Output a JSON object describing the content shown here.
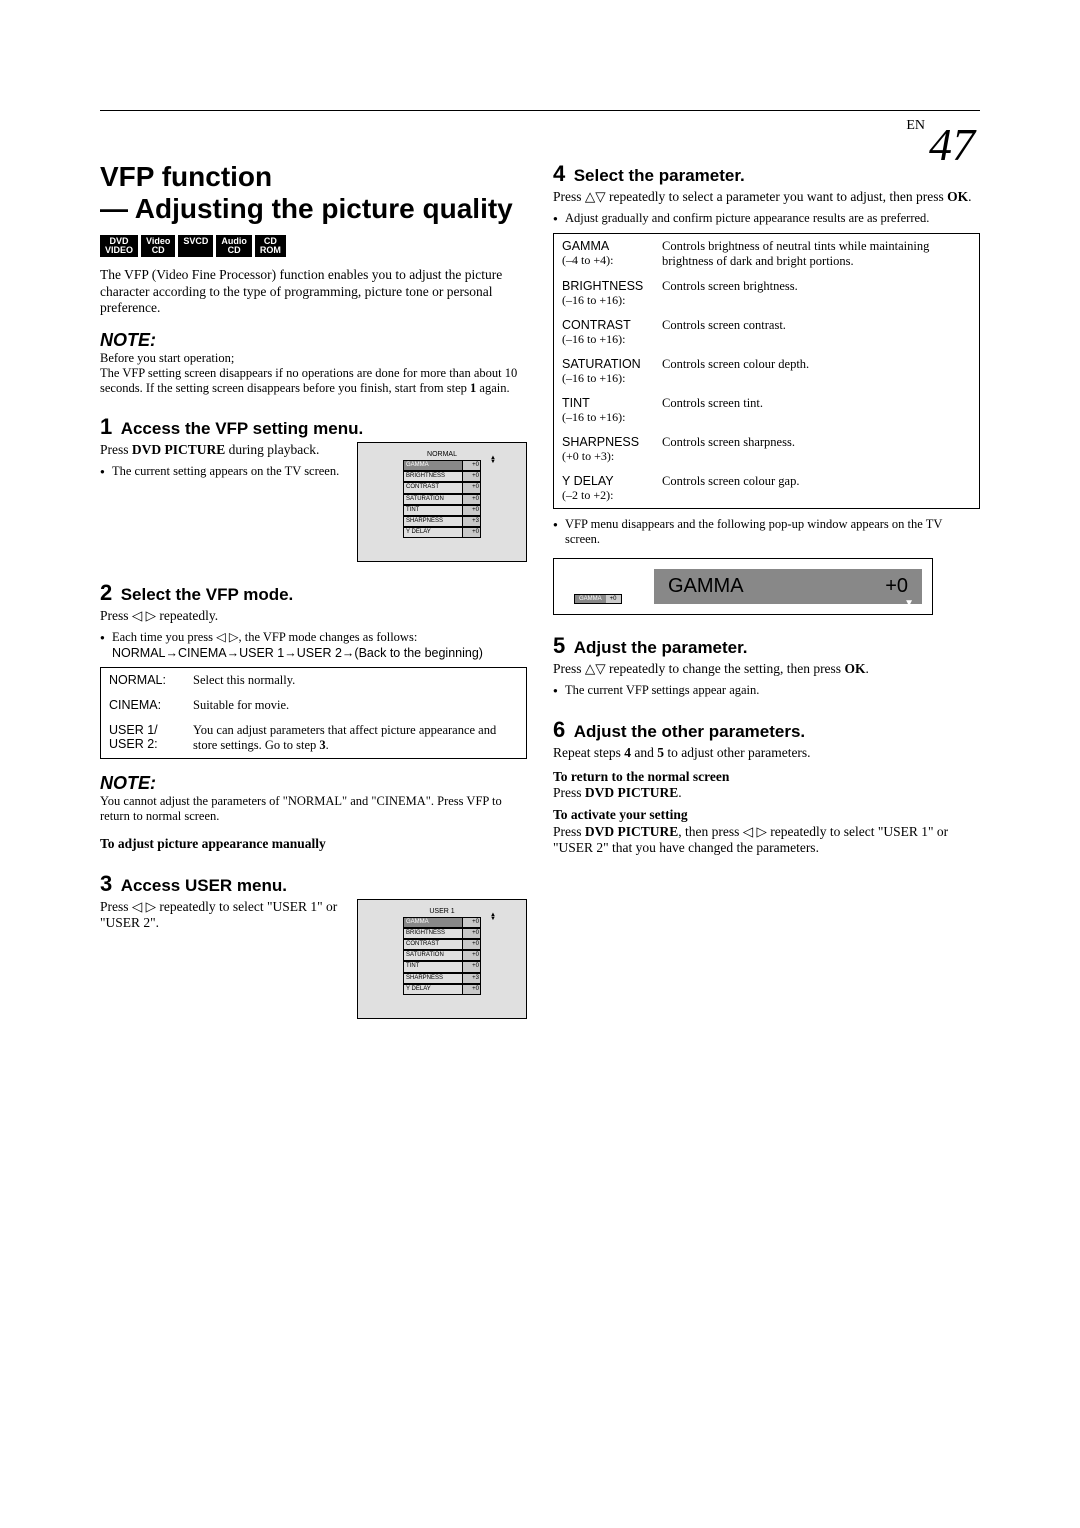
{
  "page": {
    "lang": "EN",
    "number": "47"
  },
  "title_l1": "VFP function",
  "title_l2": "— Adjusting the picture quality",
  "badges": [
    {
      "l1": "DVD",
      "l2": "VIDEO"
    },
    {
      "l1": "Video",
      "l2": "CD"
    },
    {
      "l1": "SVCD"
    },
    {
      "l1": "Audio",
      "l2": "CD"
    },
    {
      "l1": "CD",
      "l2": "ROM"
    }
  ],
  "intro": "The VFP (Video Fine Processor) function enables you to adjust the picture character according to the type of programming, picture tone or personal preference.",
  "note_label": "NOTE:",
  "note1_l1": "Before you start operation;",
  "note1_body": "The VFP setting screen disappears if no operations are done for more than about 10 seconds. If the setting screen disappears before you finish, start from step ",
  "note1_step": "1",
  "note1_tail": " again.",
  "step1": {
    "n": "1",
    "title": "Access the VFP setting menu.",
    "p1a": "Press ",
    "p1b": "DVD PICTURE",
    "p1c": " during playback.",
    "b1": "The current setting appears on the TV screen."
  },
  "screen1": {
    "title": "NORMAL",
    "rows": [
      {
        "k": "GAMMA",
        "v": "+0",
        "hl": true
      },
      {
        "k": "BRIGHTNESS",
        "v": "+0"
      },
      {
        "k": "CONTRAST",
        "v": "+0"
      },
      {
        "k": "SATURATION",
        "v": "+0"
      },
      {
        "k": "TINT",
        "v": "+0"
      },
      {
        "k": "SHARPNESS",
        "v": "+3"
      },
      {
        "k": "Y DELAY",
        "v": "+0"
      }
    ]
  },
  "step2": {
    "n": "2",
    "title": "Select the VFP mode.",
    "p1": "Press ◁ ▷ repeatedly.",
    "b1": "Each time you press ◁ ▷, the VFP mode changes as follows:",
    "seq": "NORMAL→CINEMA→USER 1→USER 2→(Back to the beginning)"
  },
  "mode_table": [
    {
      "label": "NORMAL:",
      "desc": "Select this normally."
    },
    {
      "label": "CINEMA:",
      "desc": "Suitable for movie."
    },
    {
      "label": "USER 1/\nUSER 2:",
      "desc_a": "You can adjust parameters that affect picture appearance and store settings. Go to step ",
      "desc_b": "3",
      "desc_c": "."
    }
  ],
  "note2_body": "You cannot adjust the parameters of \"NORMAL\" and \"CINEMA\". Press VFP to return to normal screen.",
  "adjust_heading": "To adjust picture appearance manually",
  "step3": {
    "n": "3",
    "title": "Access USER menu.",
    "p1": "Press ◁ ▷ repeatedly to select \"USER 1\" or \"USER 2\"."
  },
  "screen3": {
    "title": "USER 1",
    "rows": [
      {
        "k": "GAMMA",
        "v": "+0",
        "hl": true
      },
      {
        "k": "BRIGHTNESS",
        "v": "+0"
      },
      {
        "k": "CONTRAST",
        "v": "+0"
      },
      {
        "k": "SATURATION",
        "v": "+0"
      },
      {
        "k": "TINT",
        "v": "+0"
      },
      {
        "k": "SHARPNESS",
        "v": "+3"
      },
      {
        "k": "Y DELAY",
        "v": "+0"
      }
    ]
  },
  "step4": {
    "n": "4",
    "title": "Select the parameter.",
    "p1a": "Press △▽ repeatedly to select a parameter you want to adjust, then press ",
    "p1b": "OK",
    "p1c": ".",
    "b1": "Adjust gradually and confirm picture appearance results are as preferred."
  },
  "param_table": [
    {
      "name": "GAMMA",
      "range": "(–4 to +4):",
      "desc": "Controls brightness of neutral tints while maintaining brightness of dark and bright portions."
    },
    {
      "name": "BRIGHTNESS",
      "range": "(–16 to +16):",
      "desc": "Controls screen brightness."
    },
    {
      "name": "CONTRAST",
      "range": "(–16 to +16):",
      "desc": "Controls screen contrast."
    },
    {
      "name": "SATURATION",
      "range": "(–16 to +16):",
      "desc": "Controls screen colour depth."
    },
    {
      "name": "TINT",
      "range": "(–16 to +16):",
      "desc": "Controls screen tint."
    },
    {
      "name": "SHARPNESS",
      "range": "(+0 to +3):",
      "desc": "Controls screen sharpness."
    },
    {
      "name": "Y DELAY",
      "range": "(–2 to +2):",
      "desc": "Controls screen colour gap."
    }
  ],
  "b_after_table": "VFP menu disappears and the following pop-up window appears on the TV screen.",
  "gamma_popup": {
    "label": "GAMMA",
    "value": "+0",
    "mini_k": "GAMMA",
    "mini_v": "+0"
  },
  "step5": {
    "n": "5",
    "title": "Adjust the parameter.",
    "p1a": "Press △▽ repeatedly to change the setting, then press ",
    "p1b": "OK",
    "p1c": ".",
    "b1": "The current VFP settings appear again."
  },
  "step6": {
    "n": "6",
    "title": "Adjust the other parameters.",
    "p1a": "Repeat steps ",
    "p1b": "4",
    "p1c": " and ",
    "p1d": "5",
    "p1e": " to adjust other parameters."
  },
  "return_h": "To return to the normal screen",
  "return_p_a": "Press ",
  "return_p_b": "DVD PICTURE",
  "return_p_c": ".",
  "activate_h": "To activate your setting",
  "activate_p_a": "Press ",
  "activate_p_b": "DVD PICTURE",
  "activate_p_c": ", then press ◁ ▷ repeatedly to select \"USER 1\" or \"USER 2\" that you have changed the parameters."
}
